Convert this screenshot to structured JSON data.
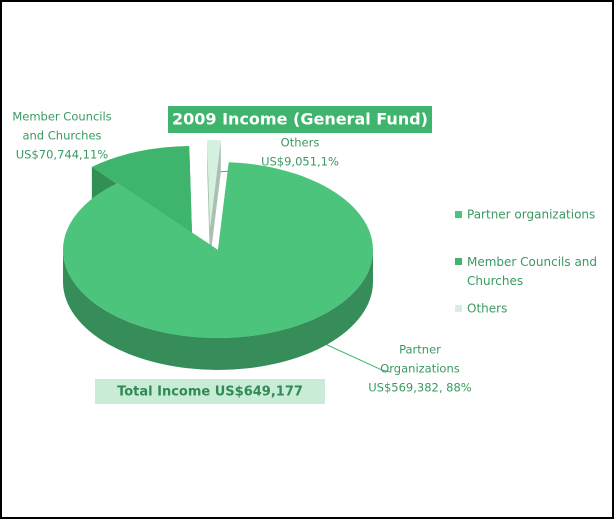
{
  "chart_data": {
    "type": "pie",
    "title": "2009 Income (General Fund)",
    "subtitle": "Total Income US$649,177",
    "categories": [
      "Partner organizations",
      "Member Councils and Churches",
      "Others"
    ],
    "values": [
      569382,
      70744,
      9051
    ],
    "value_labels": [
      [
        "Partner",
        "Organizations",
        "US$569,382,  88%"
      ],
      [
        "Member Councils",
        "and Churches",
        "US$70,744,11%"
      ],
      [
        "Others",
        "US$9,051,1%"
      ]
    ],
    "colors": [
      "#4cc47b",
      "#3fb46c",
      "#d4f0de"
    ],
    "legend": "right"
  }
}
